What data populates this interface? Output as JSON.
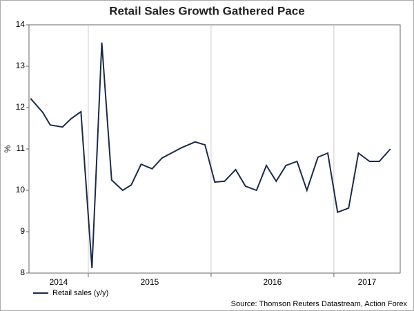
{
  "chart_data": {
    "type": "line",
    "title": "Retail Sales Growth Gathered Pace",
    "ylabel": "%",
    "source": "Source: Thomson Reuters Datastream, Action Forex",
    "x": [
      2014.53,
      2014.63,
      2014.69,
      2014.79,
      2014.86,
      2014.94,
      2015.03,
      2015.11,
      2015.19,
      2015.28,
      2015.35,
      2015.43,
      2015.52,
      2015.6,
      2015.76,
      2015.87,
      2015.95,
      2016.03,
      2016.11,
      2016.2,
      2016.28,
      2016.37,
      2016.45,
      2016.53,
      2016.61,
      2016.7,
      2016.78,
      2016.87,
      2016.95,
      2017.03,
      2017.12,
      2017.2,
      2017.29,
      2017.37,
      2017.46
    ],
    "series": [
      {
        "name": "Retail sales (y/y)",
        "color": "#1b2a4a",
        "values": [
          12.22,
          11.88,
          11.58,
          11.53,
          11.73,
          11.9,
          8.12,
          13.57,
          10.25,
          10.0,
          10.13,
          10.63,
          10.52,
          10.78,
          11.03,
          11.17,
          11.1,
          10.2,
          10.22,
          10.5,
          10.1,
          10.0,
          10.6,
          10.22,
          10.6,
          10.7,
          10.0,
          10.8,
          10.9,
          9.47,
          9.57,
          10.9,
          10.7,
          10.7,
          11.0
        ]
      }
    ],
    "xlim": [
      2014.517,
      2017.54
    ],
    "xticks": [
      2014,
      2015,
      2016,
      2017
    ],
    "ylim": [
      8,
      14
    ],
    "yticks": [
      8,
      9,
      10,
      11,
      12,
      13,
      14
    ],
    "grid": true,
    "legend": "bottom-left"
  }
}
